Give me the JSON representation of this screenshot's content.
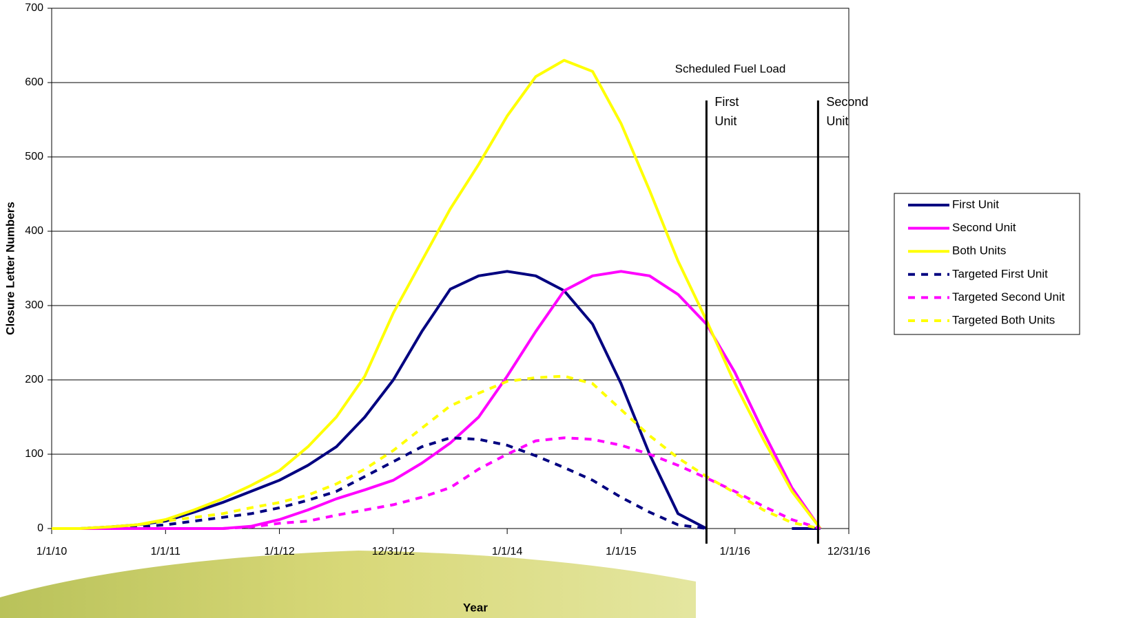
{
  "chart_data": {
    "type": "line",
    "annotation": "Scheduled Fuel Load",
    "xlabel": "Year",
    "ylabel": "Closure Letter Numbers",
    "x": [
      2010,
      2010.25,
      2010.5,
      2010.75,
      2011,
      2011.25,
      2011.5,
      2011.75,
      2012,
      2012.25,
      2012.5,
      2012.75,
      2013,
      2013.25,
      2013.5,
      2013.75,
      2014,
      2014.25,
      2014.5,
      2014.75,
      2015,
      2015.25,
      2015.5,
      2015.75,
      2016,
      2016.25,
      2016.5,
      2016.75
    ],
    "series": [
      {
        "name": "First Unit",
        "color": "#000080",
        "dashed": false,
        "values": [
          0,
          0,
          2,
          5,
          10,
          22,
          35,
          50,
          65,
          85,
          110,
          150,
          200,
          265,
          322,
          340,
          346,
          340,
          320,
          275,
          195,
          100,
          20,
          0,
          null,
          null,
          0,
          0
        ]
      },
      {
        "name": "Second Unit",
        "color": "#ff00ff",
        "dashed": false,
        "values": [
          0,
          0,
          0,
          0,
          0,
          0,
          0,
          3,
          12,
          25,
          40,
          52,
          65,
          88,
          115,
          150,
          205,
          265,
          320,
          340,
          346,
          340,
          315,
          275,
          210,
          130,
          55,
          0
        ]
      },
      {
        "name": "Both Units",
        "color": "#ffff00",
        "dashed": false,
        "values": [
          0,
          0,
          2,
          5,
          12,
          25,
          40,
          58,
          78,
          110,
          150,
          205,
          290,
          360,
          430,
          490,
          555,
          608,
          630,
          615,
          545,
          455,
          360,
          280,
          195,
          120,
          50,
          0
        ]
      },
      {
        "name": "Targeted First Unit",
        "color": "#000080",
        "dashed": true,
        "values": [
          0,
          0,
          0,
          2,
          5,
          10,
          15,
          20,
          28,
          38,
          50,
          70,
          90,
          110,
          122,
          120,
          112,
          98,
          82,
          65,
          42,
          22,
          5,
          0,
          null,
          null,
          null,
          null
        ]
      },
      {
        "name": "Targeted Second Unit",
        "color": "#ff00ff",
        "dashed": true,
        "values": [
          0,
          0,
          0,
          0,
          0,
          0,
          0,
          2,
          7,
          10,
          18,
          25,
          32,
          42,
          55,
          80,
          100,
          118,
          122,
          120,
          112,
          100,
          85,
          68,
          50,
          30,
          12,
          0
        ]
      },
      {
        "name": "Targeted Both Units",
        "color": "#ffff00",
        "dashed": true,
        "values": [
          0,
          0,
          2,
          5,
          10,
          15,
          20,
          28,
          35,
          45,
          60,
          80,
          105,
          135,
          165,
          182,
          198,
          203,
          205,
          195,
          160,
          125,
          95,
          70,
          48,
          25,
          8,
          0
        ]
      }
    ],
    "vlines": [
      {
        "x": 2015.75,
        "label": "First Unit"
      },
      {
        "x": 2016.73,
        "label": "Second Unit"
      }
    ],
    "xlim": [
      2010,
      2017
    ],
    "xticks": [
      {
        "value": 2010,
        "label": "1/1/10"
      },
      {
        "value": 2011,
        "label": "1/1/11"
      },
      {
        "value": 2012,
        "label": "1/1/12"
      },
      {
        "value": 2013,
        "label": "12/31/12"
      },
      {
        "value": 2014,
        "label": "1/1/14"
      },
      {
        "value": 2015,
        "label": "1/1/15"
      },
      {
        "value": 2016,
        "label": "1/1/16"
      },
      {
        "value": 2017,
        "label": "12/31/16"
      }
    ],
    "ylim": [
      0,
      700
    ],
    "yticks": [
      0,
      100,
      200,
      300,
      400,
      500,
      600,
      700
    ],
    "grid": true,
    "legend": "right"
  }
}
